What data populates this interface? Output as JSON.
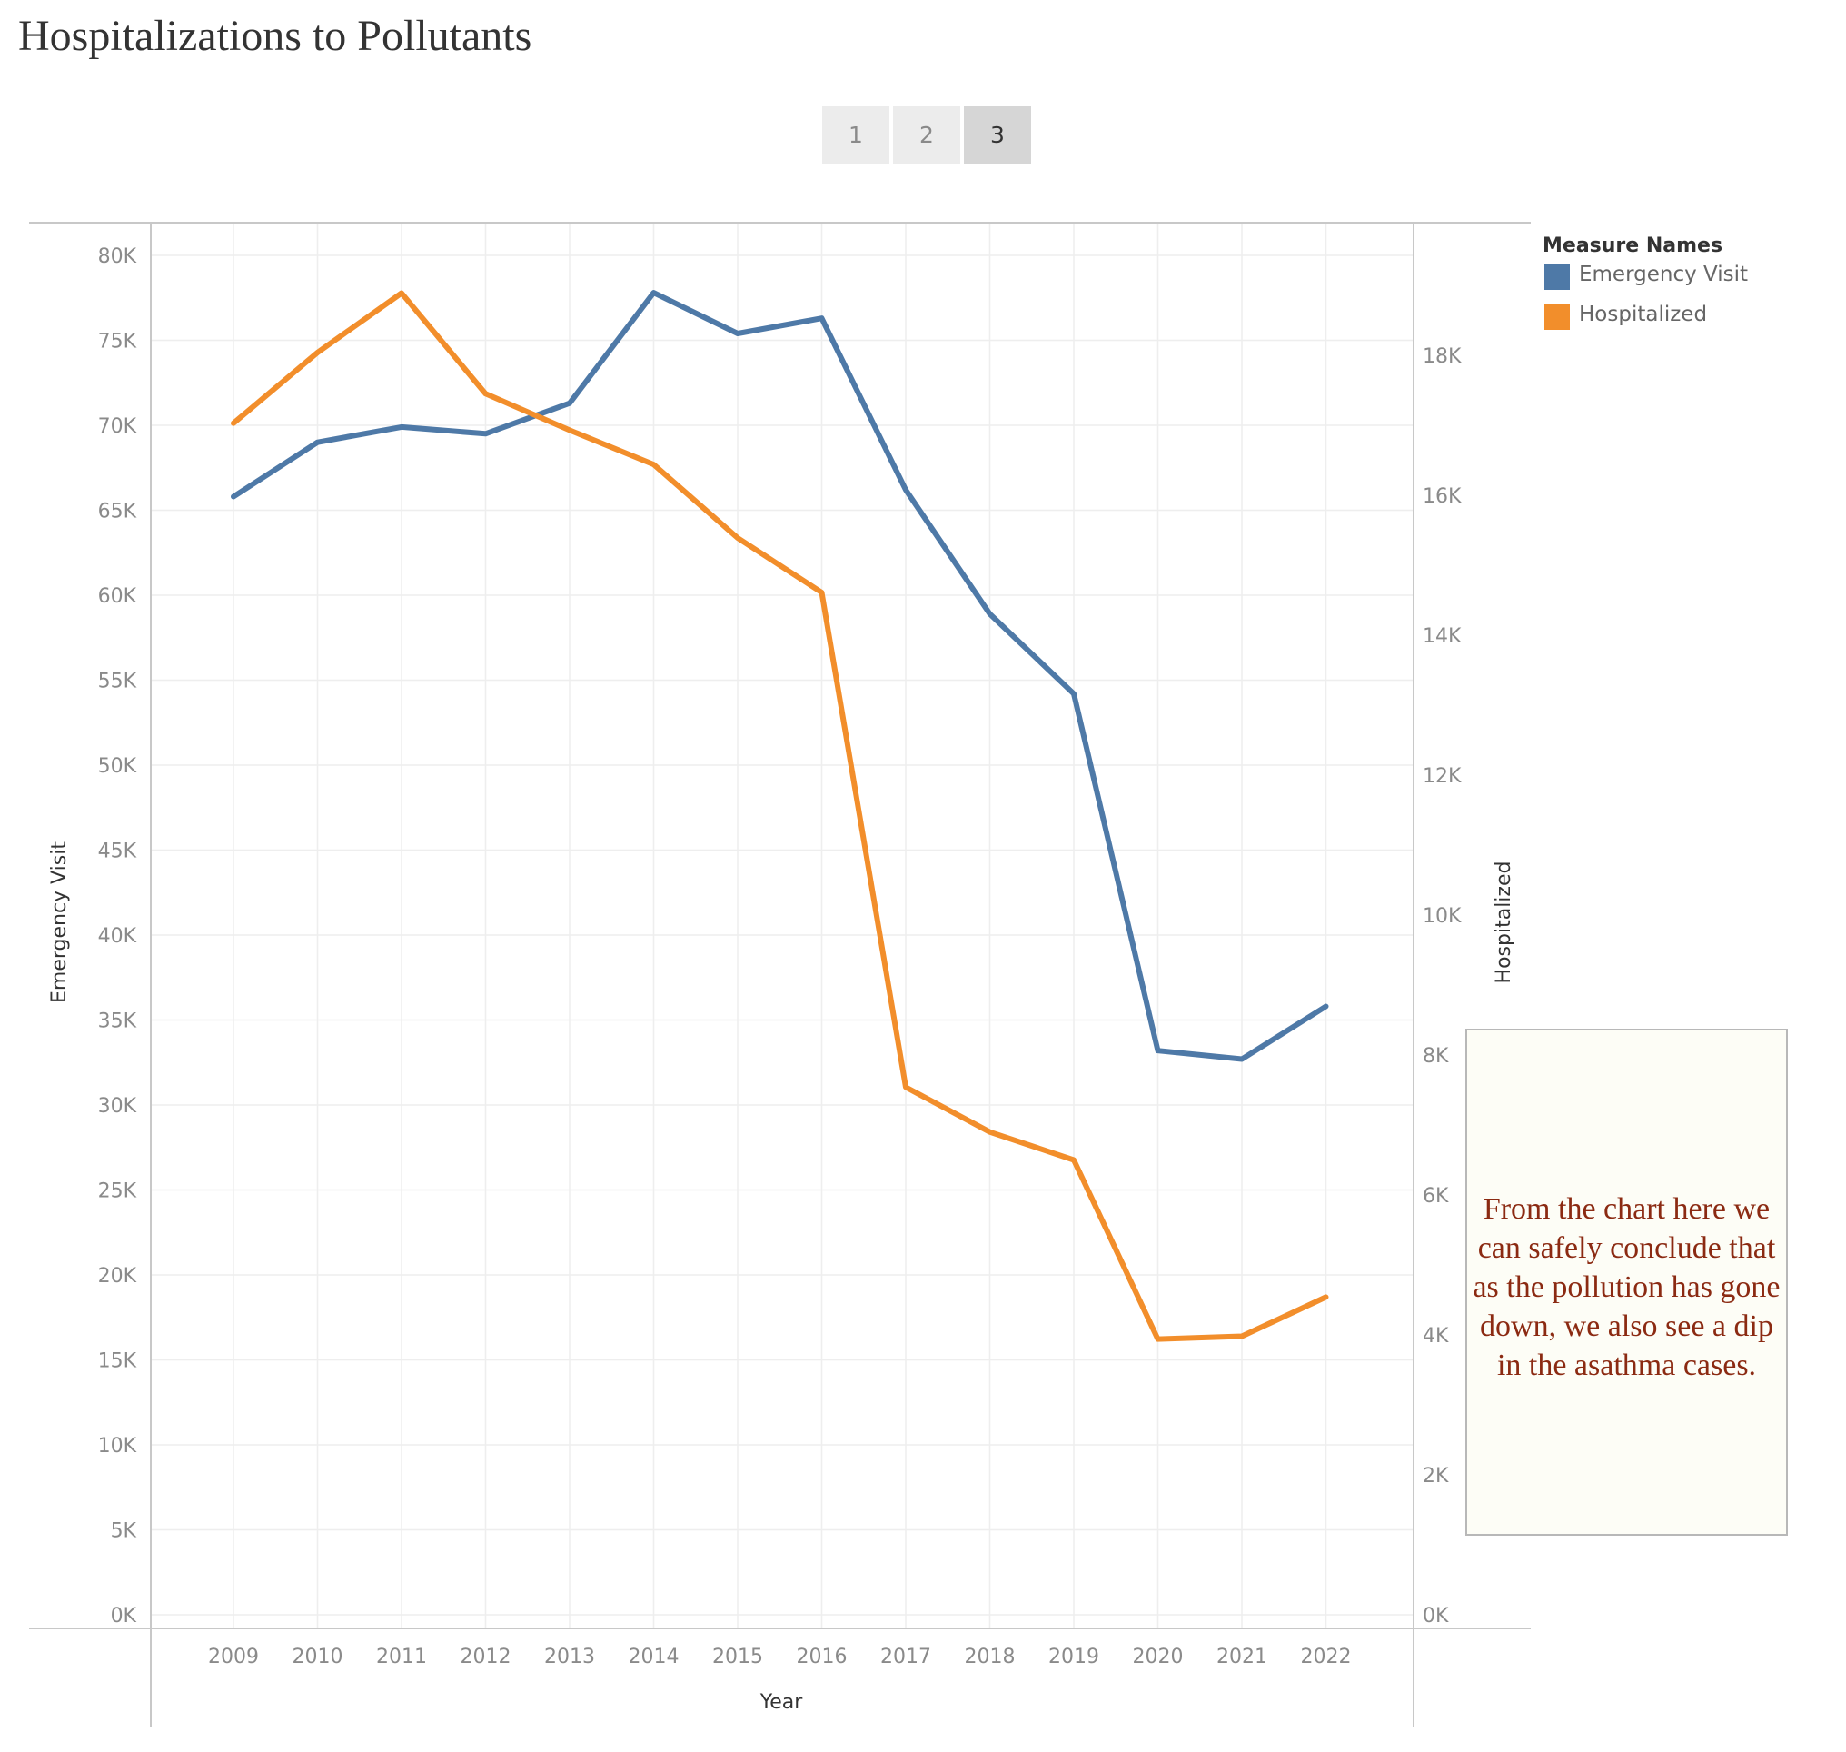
{
  "dashboard": {
    "title": "Hospitalizations to Pollutants",
    "pages": [
      {
        "label": "1",
        "active": false
      },
      {
        "label": "2",
        "active": false
      },
      {
        "label": "3",
        "active": true
      }
    ]
  },
  "legend": {
    "title": "Measure Names",
    "items": [
      {
        "label": "Emergency Visit",
        "color": "#4e79a7"
      },
      {
        "label": "Hospitalized",
        "color": "#f28e2b"
      }
    ]
  },
  "note": {
    "text": "From the chart here we can safely conclude that as the pollution has gone down, we also see a dip in the asathma cases."
  },
  "chart_data": {
    "type": "line",
    "title": "Hospitalizations to Pollutants",
    "xlabel": "Year",
    "ylabel_left": "Emergency Visit",
    "ylabel_right": "Hospitalized",
    "x": [
      "2009",
      "2010",
      "2011",
      "2012",
      "2013",
      "2014",
      "2015",
      "2016",
      "2017",
      "2018",
      "2019",
      "2020",
      "2021",
      "2022"
    ],
    "series": [
      {
        "name": "Emergency Visit",
        "axis": "left",
        "color": "#4e79a7",
        "values": [
          65800,
          69000,
          69900,
          69500,
          71300,
          77800,
          75400,
          76300,
          66200,
          58900,
          54200,
          33200,
          32700,
          35800
        ]
      },
      {
        "name": "Hospitalized",
        "axis": "right",
        "color": "#f28e2b",
        "values": [
          17030,
          18040,
          18890,
          17450,
          16930,
          16440,
          15390,
          14610,
          7540,
          6900,
          6500,
          3940,
          3980,
          4540
        ]
      }
    ],
    "ylim_left": [
      0,
      81800
    ],
    "ylim_right": [
      0,
      19900
    ],
    "yticks_left": [
      "0K",
      "5K",
      "10K",
      "15K",
      "20K",
      "25K",
      "30K",
      "35K",
      "40K",
      "45K",
      "50K",
      "55K",
      "60K",
      "65K",
      "70K",
      "75K",
      "80K"
    ],
    "yticks_left_values": [
      0,
      5000,
      10000,
      15000,
      20000,
      25000,
      30000,
      35000,
      40000,
      45000,
      50000,
      55000,
      60000,
      65000,
      70000,
      75000,
      80000
    ],
    "yticks_right": [
      "0K",
      "2K",
      "4K",
      "6K",
      "8K",
      "10K",
      "12K",
      "14K",
      "16K",
      "18K"
    ],
    "yticks_right_values": [
      0,
      2000,
      4000,
      6000,
      8000,
      10000,
      12000,
      14000,
      16000,
      18000
    ],
    "grid": true,
    "legend_position": "top-right"
  }
}
